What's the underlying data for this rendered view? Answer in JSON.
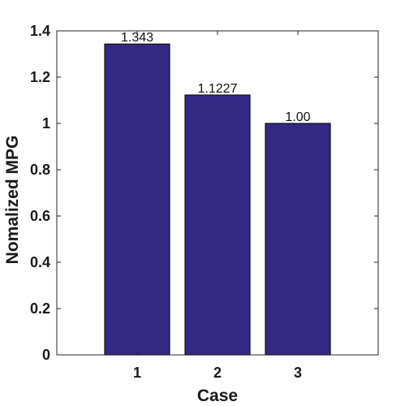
{
  "chart_data": {
    "type": "bar",
    "categories": [
      "1",
      "2",
      "3"
    ],
    "values": [
      1.343,
      1.1227,
      1.0
    ],
    "data_labels": [
      "1.343",
      "1.1227",
      "1.00"
    ],
    "xlabel": "Case",
    "ylabel": "Nomalized MPG",
    "ylim": [
      0,
      1.4
    ],
    "yticks": [
      "0",
      "0.2",
      "0.4",
      "0.6",
      "0.8",
      "1",
      "1.2",
      "1.4"
    ],
    "grid": false,
    "box": true,
    "bar_color": "#332985"
  }
}
